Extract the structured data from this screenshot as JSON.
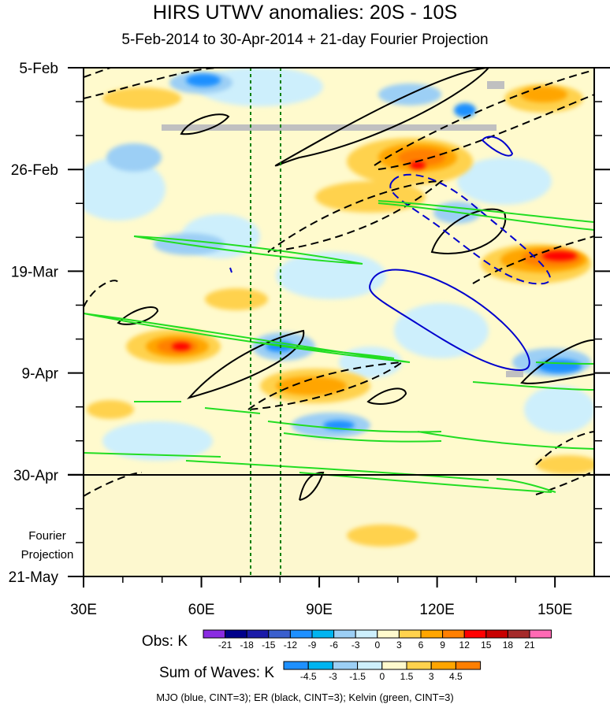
{
  "title": "HIRS UTWV anomalies: 20S - 10S",
  "subtitle": "5-Feb-2014 to 30-Apr-2014 + 21-day Fourier Projection",
  "footer": "MJO (blue, CINT=3); ER (black, CINT=3); Kelvin (green, CINT=3)",
  "projection_label": [
    "Fourier",
    "Projection"
  ],
  "chart_data": {
    "type": "heatmap",
    "x_axis": {
      "ticks": [
        "30E",
        "60E",
        "90E",
        "120E",
        "150E"
      ],
      "tick_values": [
        30,
        60,
        90,
        120,
        150
      ],
      "range": [
        30,
        160
      ]
    },
    "y_axis": {
      "ticks": [
        "5-Feb",
        "26-Feb",
        "19-Mar",
        "9-Apr",
        "30-Apr",
        "21-May"
      ],
      "tick_days": [
        0,
        21,
        42,
        63,
        84,
        105
      ],
      "range_days": [
        0,
        105
      ]
    },
    "observed_end_day": 84,
    "reference_lines_longitude": [
      72.5,
      80
    ],
    "obs_colorbar": {
      "label": "Obs: K",
      "levels": [
        "-21",
        "-18",
        "-15",
        "-12",
        "-9",
        "-6",
        "-3",
        "0",
        "3",
        "6",
        "9",
        "12",
        "15",
        "18",
        "21"
      ],
      "colors": [
        "#8a2be2",
        "#00008b",
        "#1a1aa8",
        "#3a5fcd",
        "#1e90ff",
        "#00b4f0",
        "#9ccff5",
        "#cdeffc",
        "#fffacd",
        "#ffd24d",
        "#ffa500",
        "#ff7f00",
        "#ff0000",
        "#c80000",
        "#a52a2a",
        "#ff69b4"
      ]
    },
    "waves_colorbar": {
      "label": "Sum of Waves: K",
      "levels": [
        "-4.5",
        "-3",
        "-1.5",
        "0",
        "1.5",
        "3",
        "4.5"
      ],
      "colors": [
        "#1e90ff",
        "#00b4f0",
        "#9ccff5",
        "#cdeffc",
        "#fffacd",
        "#ffd24d",
        "#ffa500",
        "#ff7f00"
      ]
    },
    "waves": [
      {
        "name": "MJO",
        "color": "#0000cd"
      },
      {
        "name": "ER",
        "color": "#000000"
      },
      {
        "name": "Kelvin",
        "color": "#22dd22"
      }
    ]
  }
}
